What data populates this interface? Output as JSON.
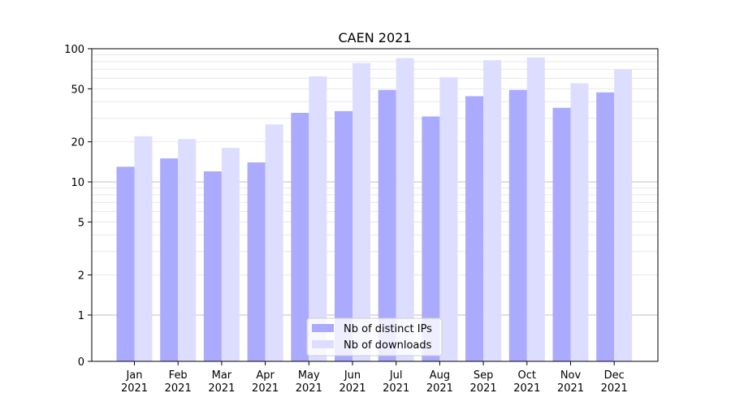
{
  "chart_data": {
    "type": "bar",
    "title": "CAEN 2021",
    "xlabel": "",
    "ylabel": "",
    "yscale": "symlog",
    "ylim": [
      0,
      100
    ],
    "yticks": [
      0,
      1,
      2,
      5,
      10,
      20,
      50,
      100
    ],
    "categories": [
      "Jan\n2021",
      "Feb\n2021",
      "Mar\n2021",
      "Apr\n2021",
      "May\n2021",
      "Jun\n2021",
      "Jul\n2021",
      "Aug\n2021",
      "Sep\n2021",
      "Oct\n2021",
      "Nov\n2021",
      "Dec\n2021"
    ],
    "series": [
      {
        "name": "Nb of distinct IPs",
        "color": "#aaaaff",
        "values": [
          13,
          15,
          12,
          14,
          33,
          34,
          49,
          31,
          44,
          49,
          36,
          47
        ]
      },
      {
        "name": "Nb of downloads",
        "color": "#ddddff",
        "values": [
          22,
          21,
          18,
          27,
          62,
          78,
          85,
          61,
          82,
          86,
          55,
          70
        ]
      }
    ],
    "grid": true,
    "legend_position": "lower center"
  }
}
